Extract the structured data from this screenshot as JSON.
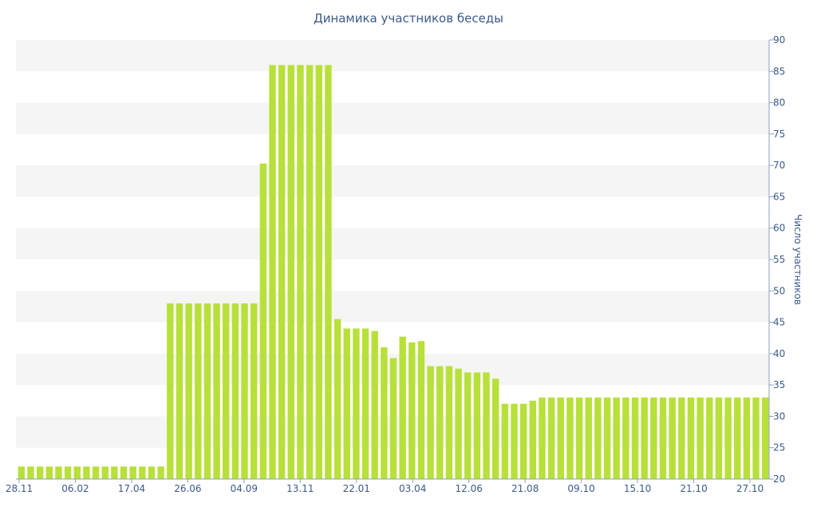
{
  "chart_data": {
    "type": "bar",
    "title": "Динамика участников беседы",
    "xlabel": "",
    "ylabel": "Число участников",
    "ylim": [
      20,
      90
    ],
    "y_ticks": [
      20,
      25,
      30,
      35,
      40,
      45,
      50,
      55,
      60,
      65,
      70,
      75,
      80,
      85,
      90
    ],
    "y_axis_side": "right",
    "bar_color": "#b8e03a",
    "band_color": "#f5f5f5",
    "x_tick_labels": [
      "28.11",
      "06.02",
      "17.04",
      "26.06",
      "04.09",
      "13.11",
      "22.01",
      "03.04",
      "12.06",
      "21.08",
      "09.10",
      "15.10",
      "21.10",
      "27.10"
    ],
    "values": [
      22,
      22,
      22,
      22,
      22,
      22,
      22,
      22,
      22,
      22,
      22,
      22,
      22,
      22,
      22,
      22,
      48,
      48,
      48,
      48,
      48,
      48,
      48,
      48,
      48,
      48,
      70.3,
      86,
      86,
      86,
      86,
      86,
      86,
      86,
      45.5,
      44,
      44,
      44,
      43.6,
      41,
      39.3,
      42.7,
      41.8,
      42,
      38,
      38,
      38,
      37.6,
      37,
      37,
      37,
      36,
      32,
      32,
      32,
      32.5,
      33,
      33,
      33,
      33,
      33,
      33,
      33,
      33,
      33,
      33,
      33,
      33,
      33,
      33,
      33,
      33,
      33,
      33,
      33,
      33,
      33,
      33,
      33,
      33,
      33
    ]
  }
}
